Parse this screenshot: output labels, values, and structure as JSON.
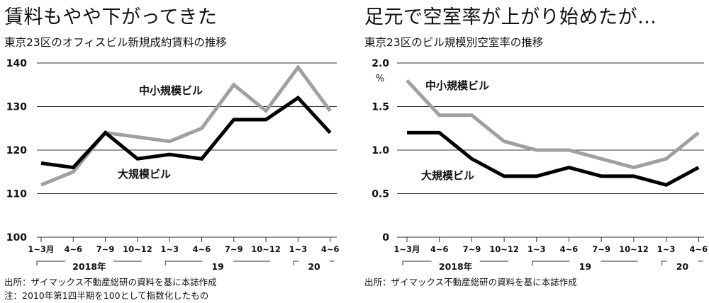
{
  "chart_data": [
    {
      "type": "line",
      "headline": "賃料もやや下がってきた",
      "title": "東京23区のオフィスビル新規成約賃料の推移",
      "x_labels": [
        "1~3月",
        "4~6",
        "7~9",
        "10~12",
        "1~3",
        "4~6",
        "7~9",
        "10~12",
        "1~3",
        "4~6"
      ],
      "year_groups": [
        {
          "label": "2018年",
          "start": 0,
          "end": 3
        },
        {
          "label": "19",
          "start": 4,
          "end": 7
        },
        {
          "label": "20",
          "start": 8,
          "end": 9
        }
      ],
      "y_ticks": [
        100,
        110,
        120,
        130,
        140
      ],
      "y_tick_labels": [
        "100",
        "110",
        "120",
        "130",
        "140"
      ],
      "ylim": [
        100,
        140
      ],
      "grid": true,
      "series": [
        {
          "name": "中小規模ビル",
          "color": "#a0a0a0",
          "values": [
            112,
            115,
            124,
            123,
            122,
            125,
            135,
            129,
            139,
            129
          ]
        },
        {
          "name": "大規模ビル",
          "color": "#000000",
          "values": [
            117,
            116,
            124,
            118,
            119,
            118,
            127,
            127,
            132,
            124
          ]
        }
      ],
      "notes": [
        "出所：ザイマックス不動産総研の資料を基に本誌作成",
        "注：2010年第1四半期を100として指数化したもの"
      ]
    },
    {
      "type": "line",
      "headline": "足元で空室率が上がり始めたが…",
      "title": "東京23区のビル規模別空室率の推移",
      "unit": "%",
      "x_labels": [
        "1~3月",
        "4~6",
        "7~9",
        "10~12",
        "1~3",
        "4~6",
        "7~9",
        "10~12",
        "1~3",
        "4~6"
      ],
      "year_groups": [
        {
          "label": "2018年",
          "start": 0,
          "end": 3
        },
        {
          "label": "19",
          "start": 4,
          "end": 7
        },
        {
          "label": "20",
          "start": 8,
          "end": 9
        }
      ],
      "y_ticks": [
        0,
        0.5,
        1.0,
        1.5,
        2.0
      ],
      "y_tick_labels": [
        "0",
        "0.5",
        "1.0",
        "1.5",
        "2.0"
      ],
      "ylim": [
        0,
        2.0
      ],
      "grid": true,
      "series": [
        {
          "name": "中小規模ビル",
          "color": "#a0a0a0",
          "values": [
            1.8,
            1.4,
            1.4,
            1.1,
            1.0,
            1.0,
            0.9,
            0.8,
            0.9,
            1.2
          ]
        },
        {
          "name": "大規模ビル",
          "color": "#000000",
          "values": [
            1.2,
            1.2,
            0.9,
            0.7,
            0.7,
            0.8,
            0.7,
            0.7,
            0.6,
            0.8
          ]
        }
      ],
      "notes": [
        "出所：ザイマックス不動産総研の資料を基に本誌作成"
      ]
    }
  ]
}
